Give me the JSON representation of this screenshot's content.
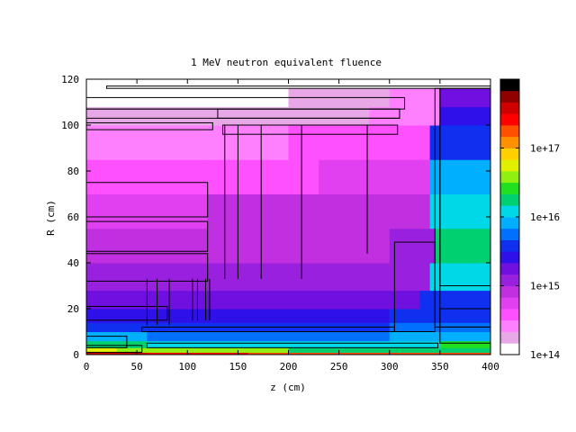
{
  "chart_data": {
    "type": "heatmap",
    "title": "1 MeV neutron equivalent fluence",
    "xlabel": "z (cm)",
    "ylabel": "R (cm)",
    "xlim": [
      0,
      400
    ],
    "ylim": [
      0,
      120
    ],
    "x_ticks": [
      0,
      50,
      100,
      150,
      200,
      250,
      300,
      350,
      400
    ],
    "y_ticks": [
      0,
      20,
      40,
      60,
      80,
      100,
      120
    ],
    "colorbar": {
      "scale": "log",
      "range": [
        100000000000000.0,
        1e+18
      ],
      "tick_values": [
        100000000000000.0,
        1000000000000000.0,
        1e+16,
        1e+17
      ],
      "tick_labels": [
        "1e+14",
        "1e+15",
        "1e+16",
        "1e+17"
      ],
      "colors": [
        "#ffffff",
        "#e8a8e8",
        "#ff80ff",
        "#ff50ff",
        "#e040f0",
        "#c030e0",
        "#9a20e0",
        "#7010e0",
        "#3010e8",
        "#1030f0",
        "#0070ff",
        "#00b0ff",
        "#00d8e8",
        "#00d070",
        "#20e020",
        "#90f010",
        "#e0f000",
        "#ffd000",
        "#ff9000",
        "#ff5000",
        "#ff0000",
        "#d00000",
        "#900000",
        "#000000"
      ]
    },
    "bands": [
      {
        "r": [
          0,
          1
        ],
        "values": [
          {
            "z": [
              0,
              60
            ],
            "level": 21
          },
          {
            "z": [
              60,
              160
            ],
            "level": 20
          },
          {
            "z": [
              160,
              400
            ],
            "level": 19
          }
        ]
      },
      {
        "r": [
          1,
          3
        ],
        "values": [
          {
            "z": [
              0,
              30
            ],
            "level": 16
          },
          {
            "z": [
              30,
              200
            ],
            "level": 15
          },
          {
            "z": [
              200,
              400
            ],
            "level": 13
          }
        ]
      },
      {
        "r": [
          3,
          6
        ],
        "values": [
          {
            "z": [
              0,
              60
            ],
            "level": 13
          },
          {
            "z": [
              60,
              350
            ],
            "level": 12
          },
          {
            "z": [
              350,
              400
            ],
            "level": 14
          }
        ]
      },
      {
        "r": [
          6,
          10
        ],
        "values": [
          {
            "z": [
              0,
              60
            ],
            "level": 11
          },
          {
            "z": [
              60,
              300
            ],
            "level": 10
          },
          {
            "z": [
              300,
              400
            ],
            "level": 11
          }
        ]
      },
      {
        "r": [
          10,
          14
        ],
        "values": [
          {
            "z": [
              0,
              60
            ],
            "level": 9
          },
          {
            "z": [
              60,
              300
            ],
            "level": 9
          },
          {
            "z": [
              300,
              400
            ],
            "level": 10
          }
        ]
      },
      {
        "r": [
          14,
          20
        ],
        "values": [
          {
            "z": [
              0,
              150
            ],
            "level": 8
          },
          {
            "z": [
              150,
              300
            ],
            "level": 8
          },
          {
            "z": [
              300,
              400
            ],
            "level": 9
          }
        ]
      },
      {
        "r": [
          20,
          28
        ],
        "values": [
          {
            "z": [
              0,
              120
            ],
            "level": 7
          },
          {
            "z": [
              120,
              330
            ],
            "level": 7
          },
          {
            "z": [
              330,
              400
            ],
            "level": 9
          }
        ]
      },
      {
        "r": [
          28,
          40
        ],
        "values": [
          {
            "z": [
              0,
              120
            ],
            "level": 6
          },
          {
            "z": [
              120,
              340
            ],
            "level": 6
          },
          {
            "z": [
              340,
              400
            ],
            "level": 12
          }
        ]
      },
      {
        "r": [
          40,
          55
        ],
        "values": [
          {
            "z": [
              0,
              120
            ],
            "level": 5
          },
          {
            "z": [
              120,
              300
            ],
            "level": 5
          },
          {
            "z": [
              300,
              345
            ],
            "level": 6
          },
          {
            "z": [
              345,
              400
            ],
            "level": 13
          }
        ]
      },
      {
        "r": [
          55,
          70
        ],
        "values": [
          {
            "z": [
              0,
              120
            ],
            "level": 4
          },
          {
            "z": [
              120,
              340
            ],
            "level": 5
          },
          {
            "z": [
              340,
              400
            ],
            "level": 12
          }
        ]
      },
      {
        "r": [
          70,
          85
        ],
        "values": [
          {
            "z": [
              0,
              120
            ],
            "level": 3
          },
          {
            "z": [
              120,
              230
            ],
            "level": 3
          },
          {
            "z": [
              230,
              340
            ],
            "level": 4
          },
          {
            "z": [
              340,
              400
            ],
            "level": 11
          }
        ]
      },
      {
        "r": [
          85,
          100
        ],
        "values": [
          {
            "z": [
              0,
              120
            ],
            "level": 2
          },
          {
            "z": [
              120,
              200
            ],
            "level": 2
          },
          {
            "z": [
              200,
              340
            ],
            "level": 3
          },
          {
            "z": [
              340,
              400
            ],
            "level": 9
          }
        ]
      },
      {
        "r": [
          100,
          108
        ],
        "values": [
          {
            "z": [
              0,
              120
            ],
            "level": 1
          },
          {
            "z": [
              120,
              280
            ],
            "level": 1
          },
          {
            "z": [
              280,
              350
            ],
            "level": 2
          },
          {
            "z": [
              350,
              400
            ],
            "level": 8
          }
        ]
      },
      {
        "r": [
          108,
          116
        ],
        "values": [
          {
            "z": [
              0,
              200
            ],
            "level": 0
          },
          {
            "z": [
              200,
              300
            ],
            "level": 1
          },
          {
            "z": [
              300,
              350
            ],
            "level": 2
          },
          {
            "z": [
              350,
              400
            ],
            "level": 7
          }
        ]
      },
      {
        "r": [
          116,
          120
        ],
        "values": [
          {
            "z": [
              0,
              400
            ],
            "level": 0
          }
        ]
      }
    ],
    "outlines": [
      {
        "z": [
          0,
          125
        ],
        "r": [
          98,
          101
        ]
      },
      {
        "z": [
          0,
          120
        ],
        "r": [
          60,
          75
        ]
      },
      {
        "z": [
          0,
          120
        ],
        "r": [
          45,
          58
        ]
      },
      {
        "z": [
          0,
          120
        ],
        "r": [
          32,
          44
        ]
      },
      {
        "z": [
          0,
          80
        ],
        "r": [
          15,
          21
        ]
      },
      {
        "z": [
          0,
          40
        ],
        "r": [
          3,
          8
        ]
      },
      {
        "z": [
          0,
          55
        ],
        "r": [
          1,
          4
        ]
      },
      {
        "z": [
          0,
          315
        ],
        "r": [
          107,
          112
        ]
      },
      {
        "z": [
          0,
          310
        ],
        "r": [
          103,
          107
        ]
      },
      {
        "z": [
          130,
          310
        ],
        "r": [
          103,
          107
        ]
      },
      {
        "z": [
          135,
          308
        ],
        "r": [
          96,
          100
        ]
      },
      {
        "z": [
          55,
          305
        ],
        "r": [
          10,
          12
        ]
      },
      {
        "z": [
          60,
          348
        ],
        "r": [
          3,
          5
        ]
      },
      {
        "z": [
          305,
          345
        ],
        "r": [
          10,
          49
        ]
      },
      {
        "z": [
          345,
          350
        ],
        "r": [
          12,
          116
        ]
      },
      {
        "z": [
          350,
          400
        ],
        "r": [
          30,
          116
        ]
      },
      {
        "z": [
          350,
          400
        ],
        "r": [
          12,
          20
        ]
      },
      {
        "z": [
          350,
          400
        ],
        "r": [
          5,
          12
        ]
      },
      {
        "z": [
          20,
          400
        ],
        "r": [
          116,
          117
        ]
      }
    ],
    "rods": [
      {
        "z": 137,
        "r": [
          33,
          100
        ]
      },
      {
        "z": 150,
        "r": [
          33,
          100
        ]
      },
      {
        "z": 173,
        "r": [
          33,
          100
        ]
      },
      {
        "z": 213,
        "r": [
          33,
          100
        ]
      },
      {
        "z": 278,
        "r": [
          44,
          100
        ]
      },
      {
        "z": 60,
        "r": [
          13,
          33
        ]
      },
      {
        "z": 70,
        "r": [
          13,
          33
        ]
      },
      {
        "z": 82,
        "r": [
          13,
          33
        ]
      },
      {
        "z": 105,
        "r": [
          15,
          33
        ]
      },
      {
        "z": 110,
        "r": [
          15,
          33
        ]
      },
      {
        "z": 118,
        "r": [
          15,
          33
        ]
      },
      {
        "z": 122,
        "r": [
          15,
          33
        ]
      }
    ]
  }
}
